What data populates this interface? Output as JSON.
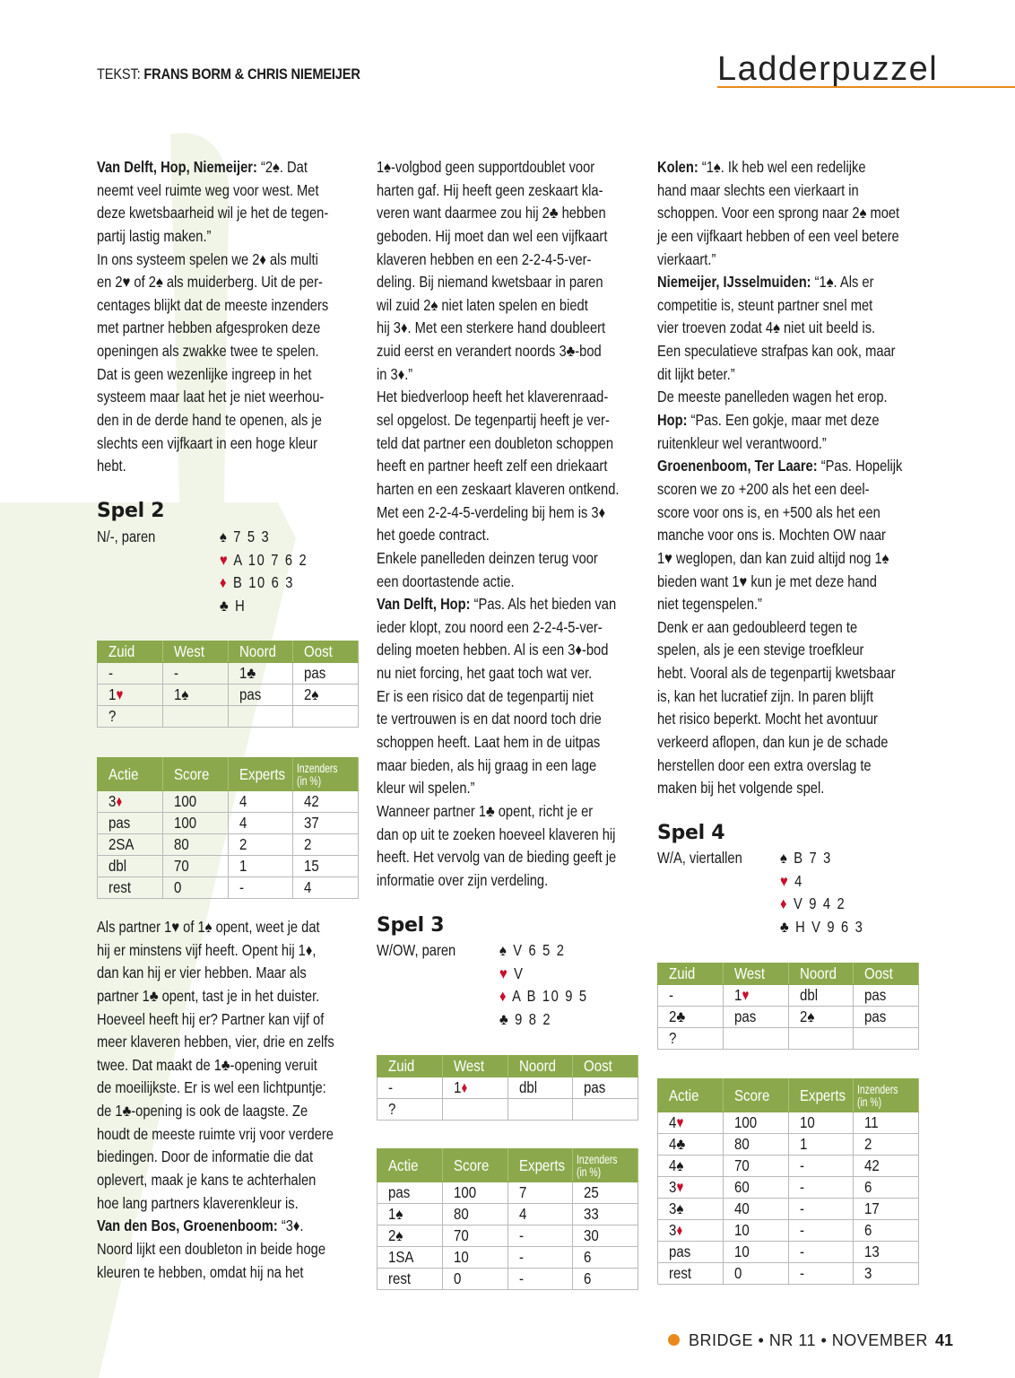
{
  "header": {
    "credit_label": "TEKST: ",
    "credit_authors": "FRANS BORM & CHRIS NIEMEIJER",
    "title": "Ladderpuzzel"
  },
  "colors": {
    "accent_orange": "#e8891c",
    "table_header_green": "#8ba94c",
    "suit_red": "#c8102e"
  },
  "columns": [
    {
      "blocks_top": [
        {
          "lead": "Van Delft, Hop, Niemeijer:",
          "lines": [
            " “2♠. Dat",
            "neemt veel ruimte weg voor west. Met",
            "deze kwetsbaarheid wil je het de tegen-",
            "partij lastig maken.”"
          ]
        },
        {
          "lead": "",
          "lines": [
            "In ons systeem spelen we 2♦ als multi",
            "en 2♥ of 2♠ als muiderberg. Uit de per-",
            "centages blijkt dat de meeste inzenders",
            "met partner hebben afgesproken deze",
            "openingen als zwakke twee te spelen.",
            "Dat is geen wezenlijke ingreep in het",
            "systeem maar laat het je niet weerhou-",
            "den in de derde hand te openen, als je",
            "slechts een vijfkaart in een hoge kleur",
            "hebt."
          ]
        }
      ],
      "blocks_bottom": [
        {
          "lead": "",
          "lines": [
            "Als partner 1♥ of 1♠ opent, weet je dat",
            "hij er minstens vijf heeft. Opent hij 1♦,",
            "dan kan hij er vier hebben. Maar als",
            "partner 1♣ opent, tast je in het duister.",
            "Hoeveel heeft hij er? Partner kan vijf of",
            "meer klaveren hebben, vier, drie en zelfs",
            "twee. Dat maakt de 1♣-opening veruit",
            "de moeilijkste. Er is wel een lichtpuntje:",
            "de 1♣-opening is ook de laagste. Ze",
            "houdt de meeste ruimte vrij voor verdere",
            "biedingen. Door de informatie die dat",
            "oplevert, maak je kans te achterhalen",
            "hoe lang partners klaverenkleur is."
          ]
        },
        {
          "lead": "Van den Bos, Groenenboom:",
          "lines": [
            " “3♦.",
            "Noord lijkt een doubleton in beide hoge",
            "kleuren te hebben, omdat hij na het"
          ]
        }
      ]
    },
    {
      "blocks_top": [
        {
          "lead": "",
          "lines": [
            "1♠-volgbod geen supportdoublet voor",
            "harten gaf. Hij heeft geen zeskaart kla-",
            "veren want daarmee zou hij 2♣ hebben",
            "geboden. Hij moet dan wel een vijfkaart",
            "klaveren hebben en een 2-2-4-5-ver-",
            "deling. Bij niemand kwetsbaar in paren",
            "wil zuid 2♠ niet laten spelen en biedt",
            "hij 3♦. Met een sterkere hand doubleert",
            "zuid eerst en verandert noords 3♣-bod",
            "in 3♦.”"
          ]
        },
        {
          "lead": "",
          "lines": [
            "Het biedverloop heeft het klaverenraad-",
            "sel opgelost. De tegenpartij heeft je ver-",
            "teld dat partner een doubleton schoppen",
            "heeft en partner heeft zelf een driekaart",
            "harten en een zeskaart klaveren ontkend.",
            "Met een 2-2-4-5-verdeling bij hem is 3♦",
            "het goede contract."
          ]
        },
        {
          "lead": "",
          "lines": [
            "Enkele panelleden deinzen terug voor",
            "een doortastende actie."
          ]
        },
        {
          "lead": "Van Delft, Hop:",
          "lines": [
            " “Pas. Als het bieden van",
            "ieder klopt, zou noord een 2-2-4-5-ver-",
            "deling moeten hebben. Al is een 3♦-bod",
            "nu niet forcing, het gaat toch wat ver.",
            "Er is een risico dat de tegenpartij niet",
            "te vertrouwen is en dat noord toch drie",
            "schoppen heeft. Laat hem in de uitpas",
            "maar bieden, als hij graag in een lage",
            "kleur wil spelen.”"
          ]
        },
        {
          "lead": "",
          "lines": [
            "Wanneer partner 1♣ opent, richt je er",
            "dan op uit te zoeken hoeveel klaveren hij",
            "heeft. Het vervolg van de bieding geeft je",
            "informatie over zijn verdeling."
          ]
        }
      ],
      "blocks_bottom": []
    },
    {
      "blocks_top": [
        {
          "lead": "Kolen:",
          "lines": [
            " “1♠. Ik heb wel een redelijke",
            "hand maar slechts een vierkaart in",
            "schoppen. Voor een sprong naar 2♠ moet",
            "je een vijfkaart hebben of een veel betere",
            "vierkaart.”"
          ]
        },
        {
          "lead": "Niemeijer, IJsselmuiden:",
          "lines": [
            " “1♠. Als er",
            "competitie is, steunt partner snel met",
            "vier troeven zodat 4♠ niet uit beeld is.",
            "Een speculatieve strafpas kan ook, maar",
            "dit lijkt beter.”"
          ]
        },
        {
          "lead": "",
          "lines": [
            "De meeste panelleden wagen het erop."
          ]
        },
        {
          "lead": "Hop:",
          "lines": [
            " “Pas. Een gokje, maar met deze",
            "ruitenkleur wel verantwoord.”"
          ]
        },
        {
          "lead": "Groenenboom, Ter Laare:",
          "lines": [
            " “Pas. Hopelijk",
            "scoren we zo +200 als het een deel-",
            "score voor ons is, en +500 als het een",
            "manche voor ons is. Mochten OW naar",
            "1♥ weglopen, dan kan zuid altijd nog 1♠",
            "bieden want 1♥ kun je met deze hand",
            "niet tegenspelen.”"
          ]
        },
        {
          "lead": "",
          "lines": [
            "Denk er aan gedoubleerd tegen te",
            "spelen, als je een stevige troefkleur",
            "hebt. Vooral als de tegenpartij kwetsbaar",
            "is, kan het lucratief zijn. In paren blijft",
            "het risico beperkt. Mocht het avontuur",
            "verkeerd aflopen, dan kun je de schade",
            "herstellen door een extra overslag te",
            "maken bij het volgende spel."
          ]
        }
      ],
      "blocks_bottom": []
    }
  ],
  "deals": [
    {
      "title": "Spel 2",
      "conditions": "N/-, paren",
      "hand": [
        "♠ 7 5 3",
        "♥ A 10 7 6 2",
        "♦ B 10 6 3",
        "♣ H"
      ],
      "bidding_headers": [
        "Zuid",
        "West",
        "Noord",
        "Oost"
      ],
      "bidding": [
        [
          "-",
          "-",
          "1♣",
          "pas"
        ],
        [
          "1♥",
          "1♠",
          "pas",
          "2♠"
        ],
        [
          "?",
          "",
          "",
          ""
        ]
      ],
      "score_headers": [
        "Actie",
        "Score",
        "Experts",
        "Inzenders",
        "(in %)"
      ],
      "scores": [
        [
          "3♦",
          "100",
          "4",
          "42"
        ],
        [
          "pas",
          "100",
          "4",
          "37"
        ],
        [
          "2SA",
          "80",
          "2",
          "2"
        ],
        [
          "dbl",
          "70",
          "1",
          "15"
        ],
        [
          "rest",
          "0",
          "-",
          "4"
        ]
      ]
    },
    {
      "title": "Spel 3",
      "conditions": "W/OW, paren",
      "hand": [
        "♠ V 6 5 2",
        "♥ V",
        "♦ A B 10 9 5",
        "♣ 9 8 2"
      ],
      "bidding_headers": [
        "Zuid",
        "West",
        "Noord",
        "Oost"
      ],
      "bidding": [
        [
          "-",
          "1♦",
          "dbl",
          "pas"
        ],
        [
          "?",
          "",
          "",
          ""
        ]
      ],
      "score_headers": [
        "Actie",
        "Score",
        "Experts",
        "Inzenders",
        "(in %)"
      ],
      "scores": [
        [
          "pas",
          "100",
          "7",
          "25"
        ],
        [
          "1♠",
          "80",
          "4",
          "33"
        ],
        [
          "2♠",
          "70",
          "-",
          "30"
        ],
        [
          "1SA",
          "10",
          "-",
          "6"
        ],
        [
          "rest",
          "0",
          "-",
          "6"
        ]
      ]
    },
    {
      "title": "Spel 4",
      "conditions": "W/A, viertallen",
      "hand": [
        "♠ B 7 3",
        "♥ 4",
        "♦ V 9 4 2",
        "♣ H V 9 6 3"
      ],
      "bidding_headers": [
        "Zuid",
        "West",
        "Noord",
        "Oost"
      ],
      "bidding": [
        [
          "-",
          "1♥",
          "dbl",
          "pas"
        ],
        [
          "2♣",
          "pas",
          "2♠",
          "pas"
        ],
        [
          "?",
          "",
          "",
          ""
        ]
      ],
      "score_headers": [
        "Actie",
        "Score",
        "Experts",
        "Inzenders",
        "(in %)"
      ],
      "scores": [
        [
          "4♥",
          "100",
          "10",
          "11"
        ],
        [
          "4♣",
          "80",
          "1",
          "2"
        ],
        [
          "4♠",
          "70",
          "-",
          "42"
        ],
        [
          "3♥",
          "60",
          "-",
          "6"
        ],
        [
          "3♠",
          "40",
          "-",
          "17"
        ],
        [
          "3♦",
          "10",
          "-",
          "6"
        ],
        [
          "pas",
          "10",
          "-",
          "13"
        ],
        [
          "rest",
          "0",
          "-",
          "3"
        ]
      ]
    }
  ],
  "footer": {
    "magazine": "BRIDGE • NR 11 • NOVEMBER",
    "page_number": "41"
  }
}
